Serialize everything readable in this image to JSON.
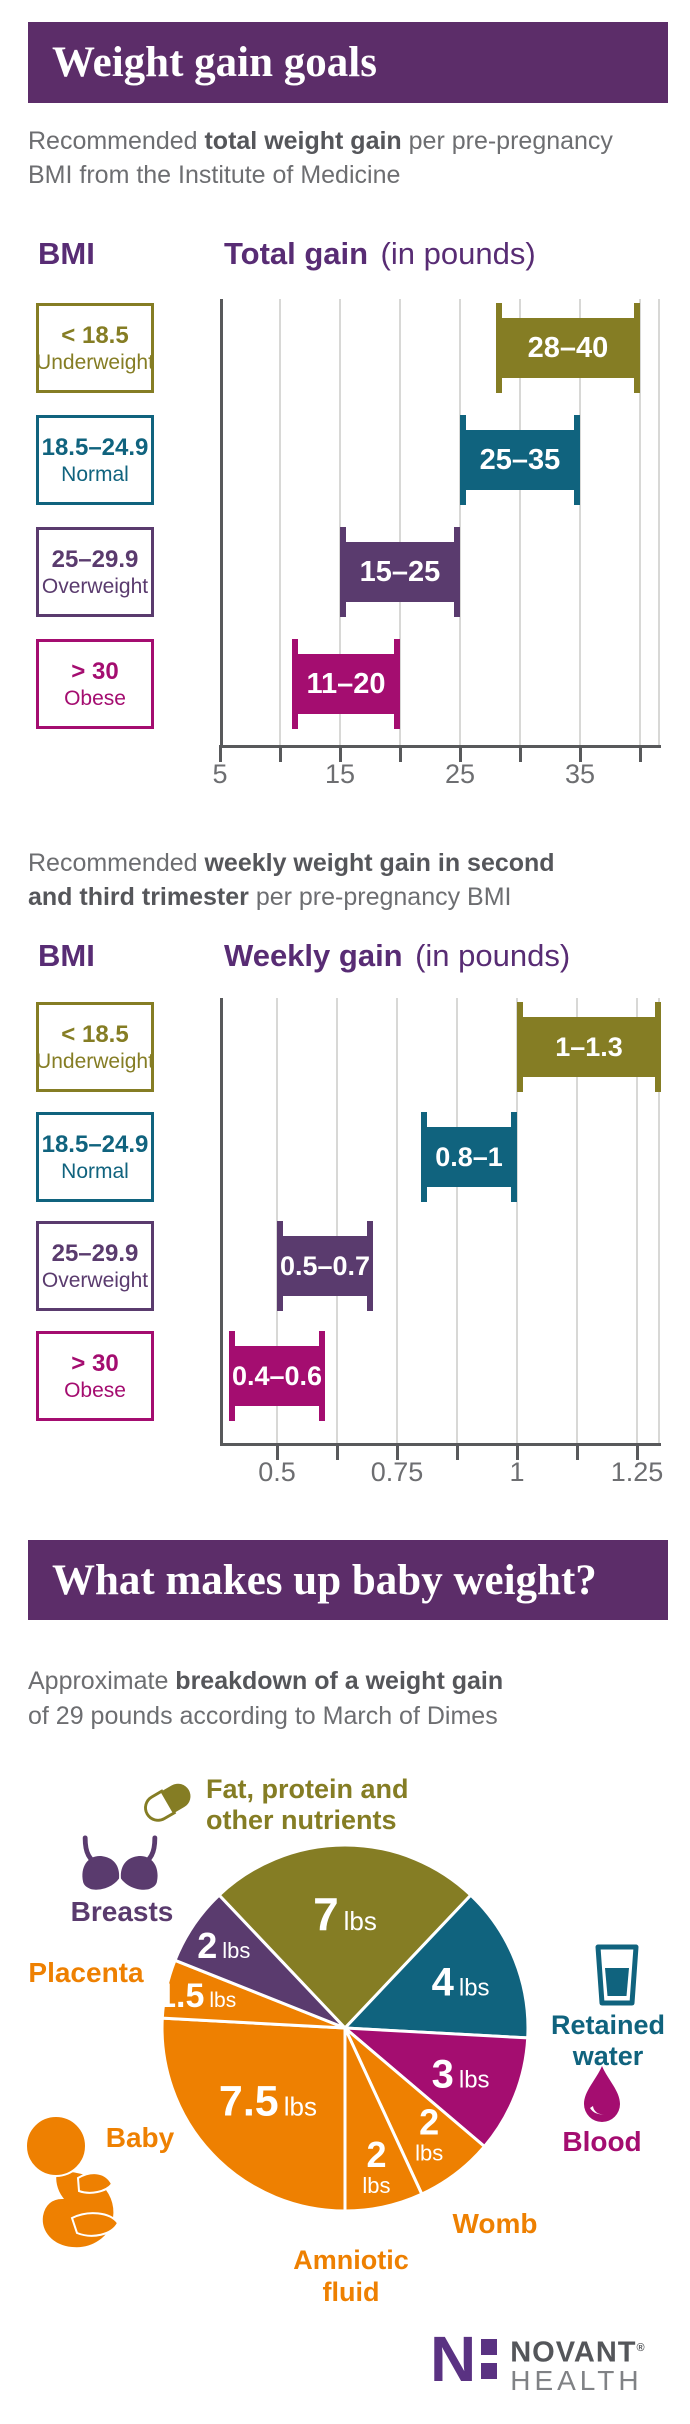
{
  "colors": {
    "banner": "#5c2d69",
    "heading": "#582c74",
    "purple": "#5a3b6e",
    "teal": "#10637e",
    "olive": "#857d24",
    "magenta": "#a40d70",
    "orange": "#ee8001",
    "text": "#6d6e71",
    "text_bold": "#55565a",
    "axis": "#58595b",
    "grid": "#d8d8d6",
    "white": "#ffffff",
    "logo_purple": "#5a3282",
    "logo_dark": "#54565a",
    "logo_light": "#808285"
  },
  "section1": {
    "title": "Weight gain goals",
    "intro": [
      [
        {
          "t": "Recommended "
        },
        {
          "t": "total weight gain",
          "b": true
        },
        {
          "t": " per pre-pregnancy"
        }
      ],
      [
        {
          "t": "BMI from the Institute of Medicine"
        }
      ]
    ]
  },
  "section2": {
    "intro": [
      [
        {
          "t": "Recommended "
        },
        {
          "t": "weekly weight gain in second",
          "b": true
        }
      ],
      [
        {
          "t": "and third trimester",
          "b": true
        },
        {
          "t": " per pre-pregnancy BMI"
        }
      ]
    ]
  },
  "section3": {
    "title": "What makes up baby weight?",
    "intro": [
      [
        {
          "t": "Approximate "
        },
        {
          "t": "breakdown of a weight gain",
          "b": true
        }
      ],
      [
        {
          "t": "of 29 pounds according to March of Dimes"
        }
      ]
    ]
  },
  "chart_data": [
    {
      "type": "bar",
      "variant": "range",
      "title_left": "BMI",
      "title_main": "Total gain",
      "title_note": "(in pounds)",
      "xlim": [
        5,
        41.5
      ],
      "grid": true,
      "rows": [
        {
          "bmi": "< 18.5",
          "category": "Underweight",
          "range": [
            28,
            40
          ],
          "label": "28–40",
          "color": "#857d24"
        },
        {
          "bmi": "18.5–24.9",
          "category": "Normal",
          "range": [
            25,
            35
          ],
          "label": "25–35",
          "color": "#10637e"
        },
        {
          "bmi": "25–29.9",
          "category": "Overweight",
          "range": [
            15,
            25
          ],
          "label": "15–25",
          "color": "#5a3b6e"
        },
        {
          "bmi": "> 30",
          "category": "Obese",
          "range": [
            11,
            20
          ],
          "label": "11–20",
          "color": "#a40d70"
        }
      ],
      "gridlines": [
        10,
        15,
        20,
        25,
        30,
        35,
        40
      ],
      "ticks": [
        {
          "v": 5,
          "t": "5"
        },
        {
          "v": 10,
          "t": ""
        },
        {
          "v": 15,
          "t": "15"
        },
        {
          "v": 20,
          "t": ""
        },
        {
          "v": 25,
          "t": "25"
        },
        {
          "v": 30,
          "t": ""
        },
        {
          "v": 35,
          "t": "35"
        },
        {
          "v": 40,
          "t": ""
        }
      ]
    },
    {
      "type": "bar",
      "variant": "range",
      "title_left": "BMI",
      "title_main": "Weekly gain",
      "title_note": "(in pounds)",
      "xlim": [
        0.38,
        1.3
      ],
      "grid": true,
      "rows": [
        {
          "bmi": "< 18.5",
          "category": "Underweight",
          "range": [
            1,
            1.3
          ],
          "label": "1–1.3",
          "color": "#857d24"
        },
        {
          "bmi": "18.5–24.9",
          "category": "Normal",
          "range": [
            0.8,
            1
          ],
          "label": "0.8–1",
          "color": "#10637e"
        },
        {
          "bmi": "25–29.9",
          "category": "Overweight",
          "range": [
            0.5,
            0.7
          ],
          "label": "0.5–0.7",
          "color": "#5a3b6e"
        },
        {
          "bmi": "> 30",
          "category": "Obese",
          "range": [
            0.4,
            0.6
          ],
          "label": "0.4–0.6",
          "color": "#a40d70"
        }
      ],
      "gridlines": [
        0.5,
        0.625,
        0.75,
        0.875,
        1,
        1.125,
        1.25
      ],
      "ticks": [
        {
          "v": 0.5,
          "t": "0.5"
        },
        {
          "v": 0.625,
          "t": ""
        },
        {
          "v": 0.75,
          "t": "0.75"
        },
        {
          "v": 0.875,
          "t": ""
        },
        {
          "v": 1,
          "t": "1"
        },
        {
          "v": 1.125,
          "t": ""
        },
        {
          "v": 1.25,
          "t": "1.25"
        }
      ]
    },
    {
      "type": "pie",
      "total": 29,
      "unit": "lbs",
      "slices": [
        {
          "label": "Fat, protein and other nutrients",
          "value": 7,
          "display": "7",
          "color": "#857d24",
          "icon": "pill-icon"
        },
        {
          "label": "Retained water",
          "value": 4,
          "display": "4",
          "color": "#10637e",
          "icon": "water-glass-icon"
        },
        {
          "label": "Blood",
          "value": 3,
          "display": "3",
          "color": "#a40d70",
          "icon": "blood-drop-icon"
        },
        {
          "label": "Womb",
          "value": 2,
          "display": "2",
          "color": "#ee8001"
        },
        {
          "label": "Amniotic fluid",
          "value": 2,
          "display": "2",
          "color": "#ee8001"
        },
        {
          "label": "Baby",
          "value": 7.5,
          "display": "7.5",
          "color": "#ee8001",
          "icon": "fetus-icon"
        },
        {
          "label": "Placenta",
          "value": 1.5,
          "display": "1.5",
          "color": "#ee8001"
        },
        {
          "label": "Breasts",
          "value": 2,
          "display": "2",
          "color": "#5a3b6e",
          "icon": "bra-icon"
        }
      ]
    }
  ],
  "logo": {
    "n": "N",
    "name": "NOVANT",
    "reg": "®",
    "sub": "HEALTH"
  }
}
